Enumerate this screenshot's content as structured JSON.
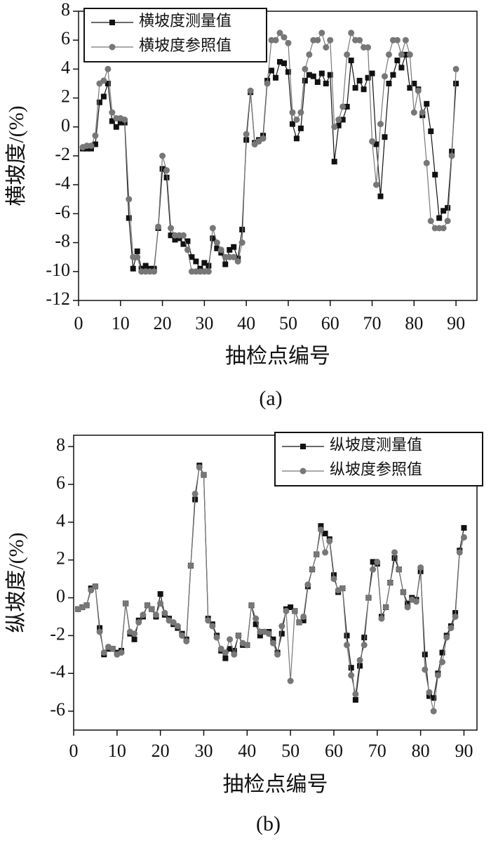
{
  "chart_data": [
    {
      "type": "line",
      "caption": "(a)",
      "x_label": "抽检点编号",
      "y_label": "横坡度/(%)",
      "x": [
        1,
        2,
        3,
        4,
        5,
        6,
        7,
        8,
        9,
        10,
        11,
        12,
        13,
        14,
        15,
        16,
        17,
        18,
        19,
        20,
        21,
        22,
        23,
        24,
        25,
        26,
        27,
        28,
        29,
        30,
        31,
        32,
        33,
        34,
        35,
        36,
        37,
        38,
        39,
        40,
        41,
        42,
        43,
        44,
        45,
        46,
        47,
        48,
        49,
        50,
        51,
        52,
        53,
        54,
        55,
        56,
        57,
        58,
        59,
        60,
        61,
        62,
        63,
        64,
        65,
        66,
        67,
        68,
        69,
        70,
        71,
        72,
        73,
        74,
        75,
        76,
        77,
        78,
        79,
        80,
        81,
        82,
        83,
        84,
        85,
        86,
        87,
        88,
        89,
        90
      ],
      "series": [
        {
          "name": "横坡度测量值",
          "color": "#111111",
          "marker": "square",
          "values": [
            -1.5,
            -1.5,
            -1.5,
            -1.2,
            1.7,
            2.1,
            3.0,
            0.4,
            0.0,
            0.3,
            0.3,
            -6.3,
            -9.8,
            -8.6,
            -9.8,
            -9.6,
            -9.8,
            -9.8,
            -7.0,
            -2.9,
            -3.5,
            -7.5,
            -7.8,
            -7.7,
            -8.1,
            -7.9,
            -9.0,
            -9.3,
            -9.8,
            -9.4,
            -9.6,
            -7.7,
            -8.4,
            -8.7,
            -9.5,
            -8.5,
            -8.3,
            -9.1,
            -7.1,
            -0.9,
            2.4,
            -1.1,
            -0.9,
            -0.6,
            3.2,
            3.9,
            3.4,
            4.5,
            4.4,
            3.8,
            0.2,
            -0.8,
            -0.1,
            3.2,
            3.6,
            3.5,
            3.1,
            3.7,
            3.0,
            3.6,
            -2.4,
            0.1,
            0.5,
            1.4,
            4.6,
            2.7,
            3.2,
            2.6,
            3.4,
            3.7,
            -1.2,
            -4.8,
            -0.7,
            3.0,
            3.6,
            4.6,
            4.1,
            5.0,
            2.7,
            3.0,
            2.6,
            0.8,
            1.6,
            -0.3,
            -3.3,
            -6.3,
            -5.8,
            -5.6,
            -1.7,
            3.0
          ]
        },
        {
          "name": "横坡度参照值",
          "color": "#777777",
          "marker": "circle",
          "values": [
            -1.4,
            -1.3,
            -1.3,
            -0.6,
            3.0,
            3.2,
            4.0,
            1.0,
            0.6,
            0.6,
            0.5,
            -5.0,
            -9.0,
            -9.0,
            -10,
            -10,
            -10,
            -10,
            -6.9,
            -2.0,
            -3.0,
            -7.0,
            -7.5,
            -7.5,
            -7.5,
            -8.5,
            -10,
            -10,
            -10,
            -10,
            -10,
            -7.0,
            -8.0,
            -8.5,
            -9.0,
            -9.0,
            -9.0,
            -9.3,
            -8.0,
            -0.5,
            2.5,
            -1.2,
            -1.0,
            -0.8,
            3.0,
            6.0,
            6.0,
            6.5,
            6.2,
            5.8,
            1.0,
            0.5,
            1.0,
            4.0,
            5.0,
            6.0,
            6.0,
            6.5,
            5.5,
            6.0,
            0.0,
            0.5,
            1.4,
            5.0,
            6.5,
            6.0,
            6.0,
            5.5,
            5.5,
            -1.0,
            -4.0,
            0.2,
            3.5,
            5.0,
            6.0,
            6.0,
            5.0,
            6.0,
            5.0,
            1.0,
            2.5,
            1.0,
            -2.5,
            -6.5,
            -7.0,
            -7.0,
            -7.0,
            -6.5,
            -2.0,
            4.0
          ]
        }
      ],
      "xlim": [
        0,
        95
      ],
      "ylim": [
        -12,
        8
      ],
      "xticks": [
        0,
        10,
        20,
        30,
        40,
        50,
        60,
        70,
        80,
        90
      ],
      "yticks": [
        -12,
        -10,
        -8,
        -6,
        -4,
        -2,
        0,
        2,
        4,
        6,
        8
      ],
      "legend": "upper left"
    },
    {
      "type": "line",
      "caption": "(b)",
      "x_label": "抽检点编号",
      "y_label": "纵坡度/(%)",
      "x": [
        1,
        2,
        3,
        4,
        5,
        6,
        7,
        8,
        9,
        10,
        11,
        12,
        13,
        14,
        15,
        16,
        17,
        18,
        19,
        20,
        21,
        22,
        23,
        24,
        25,
        26,
        27,
        28,
        29,
        30,
        31,
        32,
        33,
        34,
        35,
        36,
        37,
        38,
        39,
        40,
        41,
        42,
        43,
        44,
        45,
        46,
        47,
        48,
        49,
        50,
        51,
        52,
        53,
        54,
        55,
        56,
        57,
        58,
        59,
        60,
        61,
        62,
        63,
        64,
        65,
        66,
        67,
        68,
        69,
        70,
        71,
        72,
        73,
        74,
        75,
        76,
        77,
        78,
        79,
        80,
        81,
        82,
        83,
        84,
        85,
        86,
        87,
        88,
        89,
        90
      ],
      "series": [
        {
          "name": "纵坡度测量值",
          "color": "#111111",
          "marker": "square",
          "values": [
            -0.6,
            -0.5,
            -0.4,
            0.5,
            0.6,
            -1.6,
            -3.0,
            -2.7,
            -2.7,
            -2.9,
            -2.8,
            -0.3,
            -1.9,
            -2.2,
            -1.2,
            -1.0,
            -0.4,
            -0.6,
            -1.0,
            0.2,
            -0.9,
            -1.1,
            -1.4,
            -1.6,
            -1.9,
            -2.2,
            1.7,
            5.2,
            7.0,
            6.5,
            -1.1,
            -1.4,
            -2.0,
            -2.8,
            -3.2,
            -2.7,
            -2.8,
            -2.0,
            -2.5,
            -2.5,
            -0.4,
            -1.4,
            -2.0,
            -1.8,
            -1.8,
            -2.2,
            -2.9,
            -1.9,
            -0.6,
            -0.5,
            -0.7,
            -1.3,
            -1.2,
            0.6,
            1.5,
            2.3,
            3.8,
            3.4,
            3.1,
            1.2,
            0.3,
            0.5,
            -2.0,
            -3.7,
            -5.4,
            -3.6,
            -2.1,
            0.0,
            1.9,
            1.8,
            -1.0,
            -0.5,
            0.8,
            2.1,
            1.5,
            0.3,
            -0.3,
            0.0,
            -0.1,
            1.4,
            -3.0,
            -5.2,
            -5.3,
            -4.0,
            -2.9,
            -2.0,
            -1.5,
            -0.8,
            2.5,
            3.7
          ]
        },
        {
          "name": "纵坡度参照值",
          "color": "#777777",
          "marker": "circle",
          "values": [
            -0.6,
            -0.5,
            -0.4,
            0.4,
            0.6,
            -1.8,
            -2.9,
            -2.6,
            -2.7,
            -3.0,
            -2.9,
            -0.3,
            -1.8,
            -1.9,
            -1.3,
            -0.9,
            -0.4,
            -0.6,
            -0.9,
            -0.3,
            -0.8,
            -1.2,
            -1.3,
            -1.5,
            -2.0,
            -2.3,
            1.7,
            5.5,
            6.9,
            6.5,
            -1.2,
            -1.5,
            -2.1,
            -2.7,
            -2.9,
            -2.2,
            -3.0,
            -2.0,
            -2.4,
            -2.5,
            -0.4,
            -1.1,
            -1.8,
            -1.8,
            -1.9,
            -2.4,
            -3.0,
            -1.5,
            -0.7,
            -4.4,
            -0.7,
            -1.3,
            -1.0,
            0.7,
            1.5,
            2.3,
            3.6,
            2.4,
            3.0,
            1.0,
            0.4,
            0.5,
            -2.5,
            -4.1,
            -5.1,
            -3.3,
            -2.5,
            0.0,
            1.5,
            1.9,
            -1.1,
            -0.5,
            0.8,
            2.4,
            1.5,
            0.3,
            -0.5,
            -0.1,
            -0.2,
            1.6,
            -3.8,
            -5.0,
            -6.0,
            -4.1,
            -3.4,
            -2.1,
            -1.6,
            -1.0,
            2.4,
            3.2
          ]
        }
      ],
      "xlim": [
        0,
        93
      ],
      "ylim": [
        -7,
        8.6
      ],
      "xticks": [
        0,
        10,
        20,
        30,
        40,
        50,
        60,
        70,
        80,
        90
      ],
      "yticks": [
        -6,
        -4,
        -2,
        0,
        2,
        4,
        6,
        8
      ],
      "legend": "upper right"
    }
  ]
}
